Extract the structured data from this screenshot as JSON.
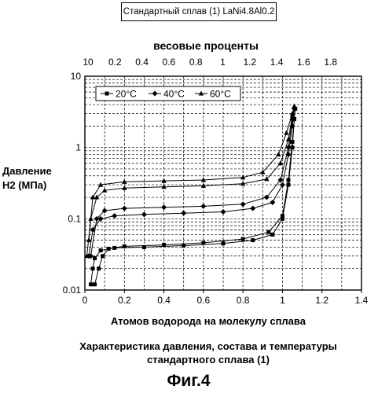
{
  "chart_data": {
    "type": "line",
    "title": "Стандартный сплав (1) LaNi4.8Al0.2",
    "xlabel": "Атомов водорода на молекулу сплава",
    "ylabel": "Давление",
    "ylabel_line2": "H2 (МПа)",
    "top_axis_label": "весовые проценты",
    "top_ticks": [
      "10",
      "0.2",
      "0.4",
      "0.6",
      "0.8",
      "1",
      "1.2",
      "1.4",
      "1.6",
      "1.8"
    ],
    "x_ticks": [
      "0",
      "0.2",
      "0.4",
      "0.6",
      "0.8",
      "1",
      "1.2",
      "1.4"
    ],
    "y_ticks": [
      "0.01",
      "0.1",
      "1",
      "10"
    ],
    "xlim": [
      0,
      1.4
    ],
    "ylim": [
      0.01,
      10
    ],
    "y_scale": "log",
    "grid": true,
    "legend_position": "top-left",
    "series": [
      {
        "name": "20°C",
        "marker": "square",
        "absorption": [
          [
            0.03,
            0.012
          ],
          [
            0.04,
            0.02
          ],
          [
            0.05,
            0.028
          ],
          [
            0.08,
            0.036
          ],
          [
            0.15,
            0.039
          ],
          [
            0.3,
            0.04
          ],
          [
            0.5,
            0.042
          ],
          [
            0.7,
            0.045
          ],
          [
            0.85,
            0.05
          ],
          [
            0.95,
            0.06
          ],
          [
            1.0,
            0.1
          ],
          [
            1.03,
            0.3
          ],
          [
            1.05,
            1.0
          ],
          [
            1.06,
            2.5
          ],
          [
            1.065,
            3.5
          ]
        ],
        "desorption": [
          [
            0.05,
            0.012
          ],
          [
            0.07,
            0.02
          ],
          [
            0.09,
            0.03
          ],
          [
            0.12,
            0.038
          ],
          [
            0.2,
            0.041
          ],
          [
            0.4,
            0.043
          ],
          [
            0.6,
            0.046
          ],
          [
            0.8,
            0.052
          ],
          [
            0.93,
            0.065
          ],
          [
            1.0,
            0.11
          ],
          [
            1.03,
            0.35
          ],
          [
            1.05,
            1.2
          ],
          [
            1.06,
            2.5
          ]
        ]
      },
      {
        "name": "40°C",
        "marker": "diamond",
        "absorption": [
          [
            0.02,
            0.03
          ],
          [
            0.04,
            0.07
          ],
          [
            0.08,
            0.1
          ],
          [
            0.15,
            0.11
          ],
          [
            0.3,
            0.115
          ],
          [
            0.5,
            0.12
          ],
          [
            0.7,
            0.125
          ],
          [
            0.85,
            0.14
          ],
          [
            0.95,
            0.17
          ],
          [
            1.0,
            0.3
          ],
          [
            1.03,
            0.8
          ],
          [
            1.05,
            2.0
          ],
          [
            1.06,
            3.5
          ]
        ],
        "desorption": [
          [
            0.03,
            0.03
          ],
          [
            0.06,
            0.1
          ],
          [
            0.1,
            0.13
          ],
          [
            0.2,
            0.14
          ],
          [
            0.4,
            0.145
          ],
          [
            0.6,
            0.15
          ],
          [
            0.8,
            0.16
          ],
          [
            0.92,
            0.2
          ],
          [
            0.99,
            0.35
          ],
          [
            1.03,
            1.0
          ],
          [
            1.05,
            2.5
          ]
        ]
      },
      {
        "name": "60°C",
        "marker": "triangle",
        "absorption": [
          [
            0.01,
            0.03
          ],
          [
            0.03,
            0.1
          ],
          [
            0.06,
            0.2
          ],
          [
            0.1,
            0.25
          ],
          [
            0.2,
            0.27
          ],
          [
            0.4,
            0.28
          ],
          [
            0.6,
            0.29
          ],
          [
            0.8,
            0.31
          ],
          [
            0.92,
            0.36
          ],
          [
            0.99,
            0.6
          ],
          [
            1.03,
            1.3
          ],
          [
            1.05,
            2.8
          ],
          [
            1.06,
            3.8
          ]
        ],
        "desorption": [
          [
            0.02,
            0.05
          ],
          [
            0.04,
            0.2
          ],
          [
            0.08,
            0.3
          ],
          [
            0.2,
            0.33
          ],
          [
            0.4,
            0.34
          ],
          [
            0.6,
            0.35
          ],
          [
            0.8,
            0.38
          ],
          [
            0.9,
            0.45
          ],
          [
            0.98,
            0.8
          ],
          [
            1.02,
            1.6
          ],
          [
            1.05,
            3.0
          ]
        ]
      }
    ],
    "colors": {
      "ink": "#000000",
      "grid": "#000000",
      "background": "#ffffff"
    }
  },
  "caption": {
    "line1": "Характеристика давления, состава и температуры",
    "line2": "стандартного сплава (1)"
  },
  "figure_label": "Фиг.4"
}
